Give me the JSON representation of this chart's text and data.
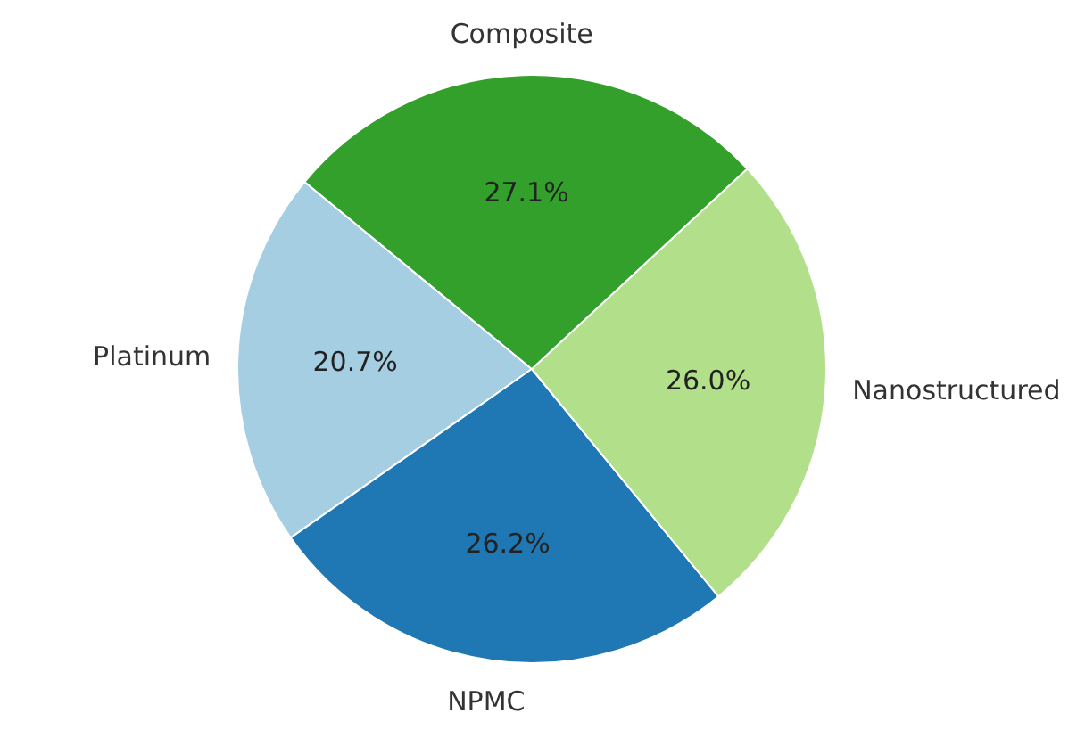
{
  "chart_data": {
    "type": "pie",
    "categories": [
      "Platinum",
      "NPMC",
      "Nanostructured",
      "Composite"
    ],
    "values": [
      20.7,
      26.2,
      26.0,
      27.1
    ],
    "value_labels": [
      "20.7%",
      "26.2%",
      "26.0%",
      "27.1%"
    ],
    "colors": [
      "#a6cee3",
      "#1f78b4",
      "#b2df8a",
      "#33a02c"
    ]
  }
}
